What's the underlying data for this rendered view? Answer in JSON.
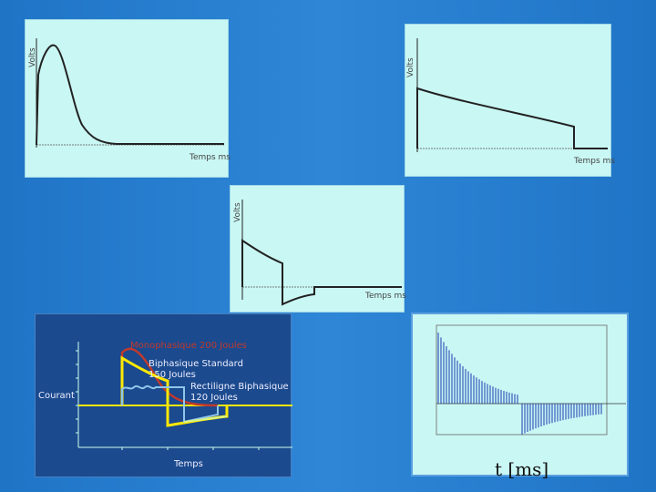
{
  "slide": {
    "panel1": {
      "ylabel": "Volts",
      "xlabel": "Temps ms"
    },
    "panel2": {
      "ylabel": "Volts",
      "xlabel": "Temps ms"
    },
    "panel3": {
      "ylabel": "Volts",
      "xlabel": "Temps ms"
    },
    "panel4": {
      "label_mono": "Monophasique 200 Joules",
      "label_bi_1": "Biphasique Standard",
      "label_bi_2": "150 Joules",
      "label_rect_1": "Rectiligne  Biphasique",
      "label_rect_2": "120 Joules",
      "ylabel": "Courant",
      "xlabel": "Temps"
    },
    "panel5": {
      "xlabel": "t [ms]"
    }
  },
  "colors": {
    "background": "#2a80d0",
    "panel": "#c9f7f4",
    "mono": "#c0392b",
    "biphasic": "#ffe800",
    "rectilinear": "#5fa8d8"
  }
}
